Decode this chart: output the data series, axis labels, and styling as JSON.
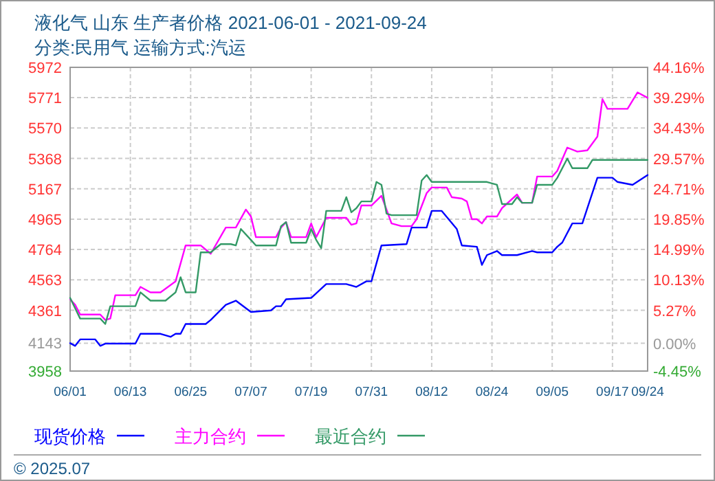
{
  "chart_data": {
    "type": "line",
    "title": "液化气 山东 生产者价格 2021-06-01 - 2021-09-24",
    "subtitle": "分类:民用气 运输方式:汽运",
    "annotations": [
      "© 2025.07"
    ],
    "xlim": [
      "2021-06-01",
      "2021-09-24"
    ],
    "xticks": [
      {
        "value": "2021-06-01",
        "label": "06/01"
      },
      {
        "value": "2021-06-13",
        "label": "06/13"
      },
      {
        "value": "2021-06-25",
        "label": "06/25"
      },
      {
        "value": "2021-07-07",
        "label": "07/07"
      },
      {
        "value": "2021-07-19",
        "label": "07/19"
      },
      {
        "value": "2021-07-31",
        "label": "07/31"
      },
      {
        "value": "2021-08-12",
        "label": "08/12"
      },
      {
        "value": "2021-08-24",
        "label": "08/24"
      },
      {
        "value": "2021-09-05",
        "label": "09/05"
      },
      {
        "value": "2021-09-17",
        "label": "09/17"
      },
      {
        "value": "2021-09-24",
        "label": "09/24"
      }
    ],
    "ylim": [
      3958,
      5972
    ],
    "yticks": [
      3958,
      4143,
      4361,
      4563,
      4764,
      4965,
      5167,
      5368,
      5570,
      5771,
      5972
    ],
    "y2lim": [
      -4.45,
      44.16
    ],
    "y2ticks": [
      {
        "value": -4.45,
        "label": "-4.45%"
      },
      {
        "value": 0,
        "label": "0.00%"
      },
      {
        "value": 5.27,
        "label": "5.27%"
      },
      {
        "value": 10.13,
        "label": "10.13%"
      },
      {
        "value": 14.99,
        "label": "14.99%"
      },
      {
        "value": 19.85,
        "label": "19.85%"
      },
      {
        "value": 24.71,
        "label": "24.71%"
      },
      {
        "value": 29.57,
        "label": "29.57%"
      },
      {
        "value": 34.43,
        "label": "34.43%"
      },
      {
        "value": 39.29,
        "label": "39.29%"
      },
      {
        "value": 44.16,
        "label": "44.16%"
      }
    ],
    "grid": true,
    "legend": "bottom",
    "series": [
      {
        "name": "现货价格",
        "color": "#0000ff",
        "x": [
          "2021-06-01",
          "2021-06-02",
          "2021-06-03",
          "2021-06-06",
          "2021-06-07",
          "2021-06-08",
          "2021-06-14",
          "2021-06-15",
          "2021-06-19",
          "2021-06-21",
          "2021-06-22",
          "2021-06-23",
          "2021-06-24",
          "2021-06-28",
          "2021-06-29",
          "2021-07-02",
          "2021-07-04",
          "2021-07-07",
          "2021-07-11",
          "2021-07-12",
          "2021-07-13",
          "2021-07-14",
          "2021-07-19",
          "2021-07-22",
          "2021-07-26",
          "2021-07-28",
          "2021-07-30",
          "2021-07-31",
          "2021-08-02",
          "2021-08-07",
          "2021-08-08",
          "2021-08-11",
          "2021-08-12",
          "2021-08-14",
          "2021-08-17",
          "2021-08-18",
          "2021-08-21",
          "2021-08-22",
          "2021-08-23",
          "2021-08-25",
          "2021-08-26",
          "2021-08-29",
          "2021-09-01",
          "2021-09-02",
          "2021-09-05",
          "2021-09-06",
          "2021-09-07",
          "2021-09-09",
          "2021-09-11",
          "2021-09-12",
          "2021-09-14",
          "2021-09-17",
          "2021-09-18",
          "2021-09-21",
          "2021-09-24"
        ],
        "values": [
          4143,
          4125,
          4168,
          4168,
          4125,
          4140,
          4140,
          4205,
          4205,
          4185,
          4205,
          4205,
          4270,
          4270,
          4297,
          4397,
          4425,
          4350,
          4360,
          4388,
          4388,
          4434,
          4443,
          4535,
          4535,
          4516,
          4553,
          4553,
          4791,
          4800,
          4910,
          4910,
          5020,
          5020,
          4900,
          4791,
          4782,
          4662,
          4727,
          4754,
          4727,
          4727,
          4754,
          4745,
          4745,
          4782,
          4810,
          4937,
          4937,
          5038,
          5240,
          5240,
          5212,
          5193,
          5258
        ]
      },
      {
        "name": "主力合约",
        "color": "#ff00ff",
        "x": [
          "2021-06-01",
          "2021-06-02",
          "2021-06-03",
          "2021-06-07",
          "2021-06-08",
          "2021-06-09",
          "2021-06-10",
          "2021-06-14",
          "2021-06-15",
          "2021-06-17",
          "2021-06-19",
          "2021-06-22",
          "2021-06-24",
          "2021-06-27",
          "2021-06-29",
          "2021-07-02",
          "2021-07-04",
          "2021-07-06",
          "2021-07-07",
          "2021-07-08",
          "2021-07-12",
          "2021-07-13",
          "2021-07-14",
          "2021-07-15",
          "2021-07-18",
          "2021-07-19",
          "2021-07-20",
          "2021-07-22",
          "2021-07-26",
          "2021-07-27",
          "2021-07-28",
          "2021-07-29",
          "2021-07-31",
          "2021-08-02",
          "2021-08-03",
          "2021-08-04",
          "2021-08-06",
          "2021-08-08",
          "2021-08-09",
          "2021-08-11",
          "2021-08-12",
          "2021-08-15",
          "2021-08-16",
          "2021-08-18",
          "2021-08-19",
          "2021-08-20",
          "2021-08-21",
          "2021-08-22",
          "2021-08-23",
          "2021-08-25",
          "2021-08-26",
          "2021-08-29",
          "2021-08-30",
          "2021-09-01",
          "2021-09-02",
          "2021-09-05",
          "2021-09-06",
          "2021-09-08",
          "2021-09-10",
          "2021-09-12",
          "2021-09-14",
          "2021-09-15",
          "2021-09-16",
          "2021-09-20",
          "2021-09-22",
          "2021-09-24"
        ],
        "values": [
          4434,
          4397,
          4333,
          4333,
          4297,
          4306,
          4461,
          4461,
          4516,
          4480,
          4480,
          4553,
          4791,
          4791,
          4736,
          4910,
          4910,
          5029,
          4983,
          4846,
          4846,
          4910,
          4946,
          4846,
          4846,
          4937,
          4846,
          4974,
          4974,
          4928,
          4937,
          5056,
          5056,
          5120,
          5029,
          4937,
          4919,
          4919,
          4965,
          5138,
          5175,
          5175,
          5111,
          5102,
          5083,
          4965,
          4965,
          4937,
          4983,
          4983,
          5038,
          5129,
          5074,
          5074,
          5248,
          5248,
          5285,
          5440,
          5413,
          5422,
          5513,
          5761,
          5697,
          5697,
          5806,
          5770
        ]
      },
      {
        "name": "最近合约",
        "color": "#339966",
        "x": [
          "2021-06-01",
          "2021-06-03",
          "2021-06-07",
          "2021-06-08",
          "2021-06-09",
          "2021-06-14",
          "2021-06-15",
          "2021-06-17",
          "2021-06-20",
          "2021-06-22",
          "2021-06-23",
          "2021-06-24",
          "2021-06-26",
          "2021-06-27",
          "2021-06-29",
          "2021-07-01",
          "2021-07-03",
          "2021-07-04",
          "2021-07-05",
          "2021-07-07",
          "2021-07-08",
          "2021-07-12",
          "2021-07-13",
          "2021-07-14",
          "2021-07-15",
          "2021-07-18",
          "2021-07-19",
          "2021-07-20",
          "2021-07-21",
          "2021-07-22",
          "2021-07-25",
          "2021-07-26",
          "2021-07-27",
          "2021-07-28",
          "2021-07-29",
          "2021-07-31",
          "2021-08-01",
          "2021-08-02",
          "2021-08-03",
          "2021-08-04",
          "2021-08-09",
          "2021-08-10",
          "2021-08-11",
          "2021-08-12",
          "2021-08-23",
          "2021-08-25",
          "2021-08-26",
          "2021-08-28",
          "2021-08-29",
          "2021-08-30",
          "2021-09-01",
          "2021-09-02",
          "2021-09-05",
          "2021-09-06",
          "2021-09-08",
          "2021-09-09",
          "2021-09-12",
          "2021-09-13",
          "2021-09-24"
        ],
        "values": [
          4443,
          4306,
          4306,
          4270,
          4388,
          4388,
          4480,
          4425,
          4425,
          4480,
          4580,
          4480,
          4480,
          4745,
          4745,
          4800,
          4800,
          4791,
          4900,
          4828,
          4791,
          4791,
          4919,
          4946,
          4809,
          4809,
          4900,
          4828,
          4773,
          5020,
          5020,
          5111,
          5011,
          5038,
          5083,
          5083,
          5212,
          5193,
          5002,
          4992,
          4992,
          5221,
          5258,
          5212,
          5212,
          5193,
          5065,
          5065,
          5111,
          5074,
          5074,
          5193,
          5193,
          5239,
          5367,
          5303,
          5303,
          5358,
          5358
        ]
      }
    ]
  }
}
